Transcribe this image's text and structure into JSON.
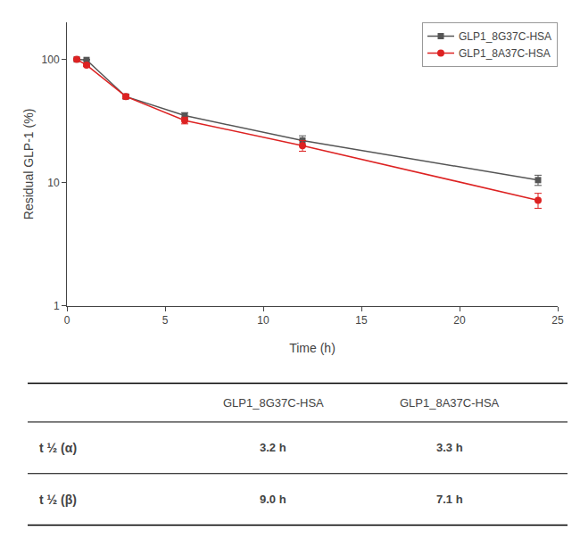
{
  "chart_data": {
    "type": "line",
    "x": [
      0.5,
      1,
      3,
      6,
      12,
      24
    ],
    "xlabel": "Time (h)",
    "ylabel": "Residual GLP-1 (%)",
    "xlim": [
      0,
      25
    ],
    "ylim": [
      1,
      200
    ],
    "xticks": [
      0,
      5,
      10,
      15,
      20,
      25
    ],
    "yticks": [
      1,
      10,
      100
    ],
    "log": "y",
    "grid": false,
    "legend": "upper right",
    "series": [
      {
        "name": "GLP1_8G37C-HSA",
        "color": "#555555",
        "marker": "square",
        "values": [
          100,
          99,
          50,
          35,
          22,
          10.5
        ],
        "error": [
          1.5,
          1,
          2,
          2,
          2,
          1
        ]
      },
      {
        "name": "GLP1_8A37C-HSA",
        "color": "#dd2222",
        "marker": "circle",
        "values": [
          100,
          90,
          50,
          32,
          20,
          7.2
        ],
        "error": [
          1,
          2,
          2,
          2,
          2,
          1
        ]
      }
    ],
    "table": {
      "header": [
        "GLP1_8G37C-HSA",
        "GLP1_8A37C-HSA"
      ],
      "rows": [
        {
          "label": "t ½ (α)",
          "cells": [
            "3.2 h",
            "3.3 h"
          ]
        },
        {
          "label": "t ½ (β)",
          "cells": [
            "9.0 h",
            "7.1 h"
          ]
        }
      ]
    }
  }
}
